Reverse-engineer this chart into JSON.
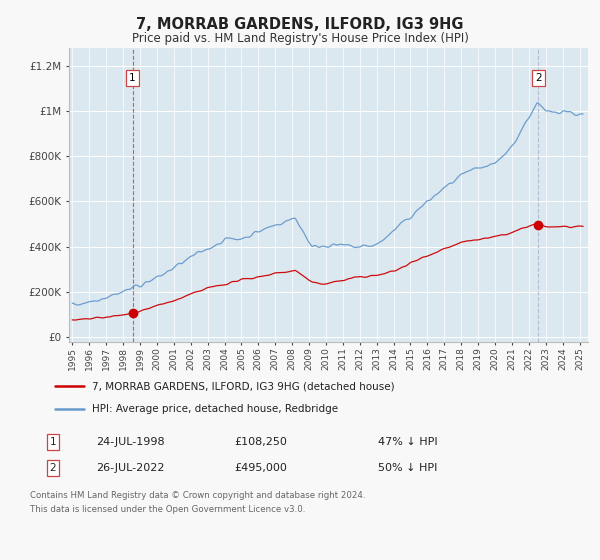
{
  "title": "7, MORRAB GARDENS, ILFORD, IG3 9HG",
  "subtitle": "Price paid vs. HM Land Registry's House Price Index (HPI)",
  "fig_bg_color": "#f8f8f8",
  "plot_bg_color": "#dce8f0",
  "grid_color": "#ffffff",
  "red_line_color": "#cc0000",
  "blue_line_color": "#6699cc",
  "sale1_date": 1998.56,
  "sale1_price": 108250,
  "sale2_date": 2022.56,
  "sale2_price": 495000,
  "ylabel_ticks": [
    0,
    200000,
    400000,
    600000,
    800000,
    1000000,
    1200000
  ],
  "ylabel_labels": [
    "£0",
    "£200K",
    "£400K",
    "£600K",
    "£800K",
    "£1M",
    "£1.2M"
  ],
  "xmin": 1994.8,
  "xmax": 2025.5,
  "ymin": -20000,
  "ymax": 1280000,
  "legend_label_red": "7, MORRAB GARDENS, ILFORD, IG3 9HG (detached house)",
  "legend_label_blue": "HPI: Average price, detached house, Redbridge",
  "annotation1_label": "1",
  "annotation1_date_str": "24-JUL-1998",
  "annotation1_price_str": "£108,250",
  "annotation1_pct_str": "47% ↓ HPI",
  "annotation2_label": "2",
  "annotation2_date_str": "26-JUL-2022",
  "annotation2_price_str": "£495,000",
  "annotation2_pct_str": "50% ↓ HPI",
  "footer1": "Contains HM Land Registry data © Crown copyright and database right 2024.",
  "footer2": "This data is licensed under the Open Government Licence v3.0."
}
